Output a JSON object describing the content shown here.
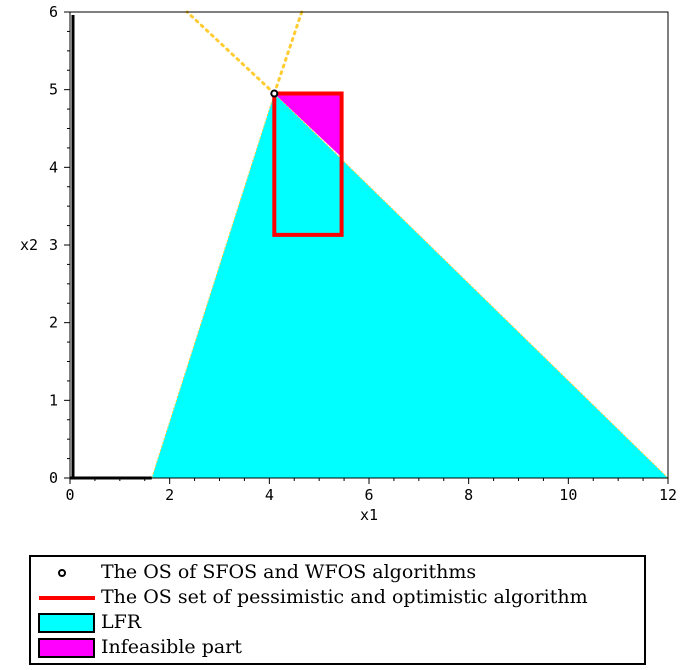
{
  "chart_data": {
    "type": "area",
    "title": "",
    "xlabel": "x1",
    "ylabel": "x2",
    "xlim": [
      0,
      12
    ],
    "ylim": [
      0,
      6
    ],
    "xticks": [
      0,
      2,
      4,
      6,
      8,
      10,
      12
    ],
    "yticks": [
      0,
      1,
      2,
      3,
      4,
      5,
      6
    ],
    "grid": false,
    "legend_position": "bottom",
    "colors": {
      "lfr": "#00ffff",
      "infeasible": "#ff00ff",
      "os_set": "#ff0000",
      "point": "#000000",
      "dotted": "#ffcc33"
    },
    "series": [
      {
        "name": "LFR",
        "kind": "polygon",
        "x": [
          1.64,
          4.1,
          12.0
        ],
        "y": [
          0.0,
          4.95,
          0.0
        ]
      },
      {
        "name": "Infeasible part",
        "kind": "polygon",
        "x": [
          4.1,
          5.45,
          5.45
        ],
        "y": [
          4.95,
          4.95,
          4.13
        ]
      },
      {
        "name": "The OS set of  pessimistic and optimistic algorithm",
        "kind": "rectangle",
        "x": [
          4.1,
          5.45,
          5.45,
          4.1,
          4.1
        ],
        "y": [
          4.95,
          4.95,
          3.13,
          3.13,
          4.95
        ]
      },
      {
        "name": "The OS of SFOS and WFOS algorithms",
        "kind": "point",
        "x": [
          4.1
        ],
        "y": [
          4.95
        ]
      }
    ],
    "dotted_lines": [
      {
        "x": [
          4.1,
          2.35
        ],
        "y": [
          4.95,
          6.0
        ]
      },
      {
        "x": [
          4.1,
          4.65
        ],
        "y": [
          4.95,
          6.0
        ]
      }
    ]
  },
  "legend": {
    "items": [
      {
        "label": "The OS of SFOS and WFOS algorithms",
        "key": "point"
      },
      {
        "label": "The OS set of  pessimistic and optimistic algorithm",
        "key": "line"
      },
      {
        "label": "LFR",
        "key": "box-cyan"
      },
      {
        "label": "Infeasible part",
        "key": "box-magenta"
      }
    ]
  }
}
